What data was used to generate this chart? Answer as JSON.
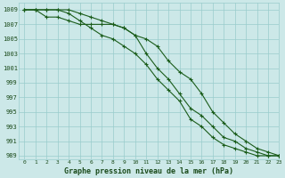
{
  "title": "Graphe pression niveau de la mer (hPa)",
  "bg_color": "#cce8e8",
  "grid_color": "#99cccc",
  "line_color": "#1a5c1a",
  "xlim": [
    -0.5,
    23
  ],
  "ylim": [
    988.5,
    1010
  ],
  "yticks": [
    989,
    991,
    993,
    995,
    997,
    999,
    1001,
    1003,
    1005,
    1007,
    1009
  ],
  "xticks": [
    0,
    1,
    2,
    3,
    4,
    5,
    6,
    7,
    8,
    9,
    10,
    11,
    12,
    13,
    14,
    15,
    16,
    17,
    18,
    19,
    20,
    21,
    22,
    23
  ],
  "line1_x": [
    0,
    1,
    2,
    3,
    4,
    5,
    6,
    7,
    8,
    9,
    10,
    11,
    12,
    13,
    14,
    15,
    16,
    17,
    18,
    19,
    20,
    21,
    22,
    23
  ],
  "line1_y": [
    1009,
    1009,
    1009,
    1009,
    1008.5,
    1007.5,
    1006.5,
    1005.5,
    1005,
    1004,
    1003,
    1001.5,
    999.5,
    998,
    996.5,
    994,
    993,
    991.5,
    990.5,
    990,
    989.5,
    989,
    989,
    989
  ],
  "line2_x": [
    0,
    1,
    2,
    3,
    4,
    5,
    6,
    7,
    8,
    9,
    10,
    11,
    12,
    13,
    14,
    15,
    16,
    17,
    18,
    19,
    20,
    21,
    22,
    23
  ],
  "line2_y": [
    1009,
    1009,
    1008,
    1008,
    1007.5,
    1007,
    1007,
    1007,
    1007,
    1006.5,
    1005.5,
    1005,
    1004,
    1002,
    1000.5,
    999.5,
    997.5,
    995,
    993.5,
    992,
    991,
    990,
    989.5,
    989
  ],
  "line3_x": [
    0,
    1,
    2,
    3,
    4,
    5,
    6,
    7,
    8,
    9,
    10,
    11,
    12,
    13,
    14,
    15,
    16,
    17,
    18,
    19,
    20,
    21,
    22,
    23
  ],
  "line3_y": [
    1009,
    1009,
    1009,
    1009,
    1009,
    1008.5,
    1008,
    1007.5,
    1007,
    1006.5,
    1005.5,
    1003,
    1001,
    999.5,
    997.5,
    995.5,
    994.5,
    993,
    991.5,
    991,
    990,
    989.5,
    989,
    989
  ]
}
